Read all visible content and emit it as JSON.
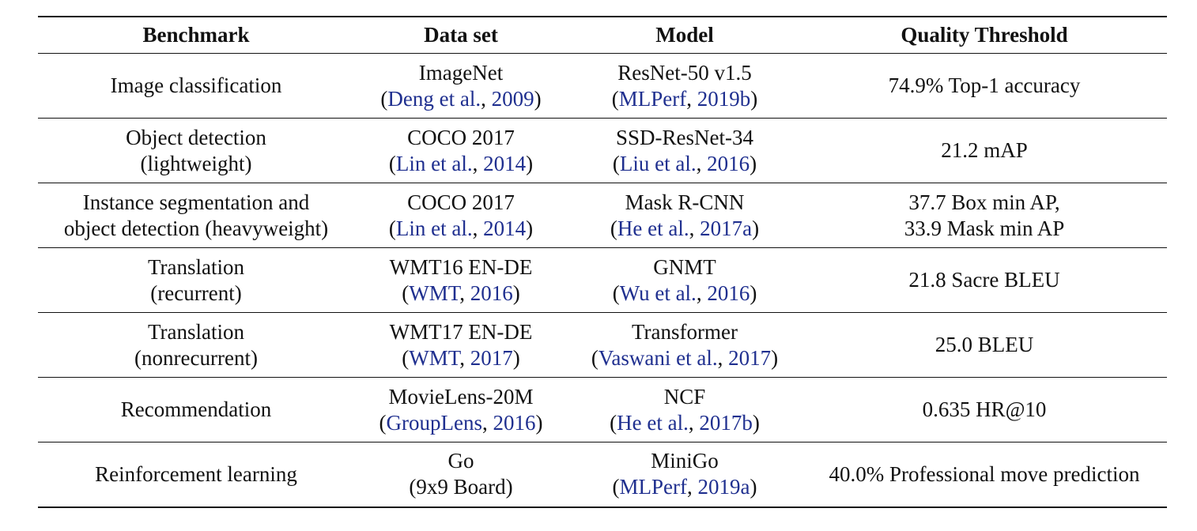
{
  "table": {
    "headers": [
      "Benchmark",
      "Data set",
      "Model",
      "Quality Threshold"
    ],
    "rows": [
      {
        "benchmark": [
          "Image classification"
        ],
        "dataset": {
          "name": "ImageNet",
          "cite_author": "Deng et al.",
          "cite_year": "2009"
        },
        "model": {
          "name": "ResNet-50 v1.5",
          "cite_author": "MLPerf",
          "cite_year": "2019b"
        },
        "threshold": [
          "74.9% Top-1 accuracy"
        ]
      },
      {
        "benchmark": [
          "Object detection",
          "(lightweight)"
        ],
        "dataset": {
          "name": "COCO 2017",
          "cite_author": "Lin et al.",
          "cite_year": "2014"
        },
        "model": {
          "name": "SSD-ResNet-34",
          "cite_author": "Liu et al.",
          "cite_year": "2016"
        },
        "threshold": [
          "21.2 mAP"
        ]
      },
      {
        "benchmark": [
          "Instance segmentation and",
          "object detection (heavyweight)"
        ],
        "dataset": {
          "name": "COCO 2017",
          "cite_author": "Lin et al.",
          "cite_year": "2014"
        },
        "model": {
          "name": "Mask R-CNN",
          "cite_author": "He et al.",
          "cite_year": "2017a"
        },
        "threshold": [
          "37.7 Box min AP,",
          "33.9 Mask min AP"
        ]
      },
      {
        "benchmark": [
          "Translation",
          "(recurrent)"
        ],
        "dataset": {
          "name": "WMT16 EN-DE",
          "cite_author": "WMT",
          "cite_year": "2016"
        },
        "model": {
          "name": "GNMT",
          "cite_author": "Wu et al.",
          "cite_year": "2016"
        },
        "threshold": [
          "21.8 Sacre BLEU"
        ]
      },
      {
        "benchmark": [
          "Translation",
          "(nonrecurrent)"
        ],
        "dataset": {
          "name": "WMT17 EN-DE",
          "cite_author": "WMT",
          "cite_year": "2017"
        },
        "model": {
          "name": "Transformer",
          "cite_author": "Vaswani et al.",
          "cite_year": "2017"
        },
        "threshold": [
          "25.0 BLEU"
        ]
      },
      {
        "benchmark": [
          "Recommendation"
        ],
        "dataset": {
          "name": "MovieLens-20M",
          "cite_author": "GroupLens",
          "cite_year": "2016"
        },
        "model": {
          "name": "NCF",
          "cite_author": "He et al.",
          "cite_year": "2017b"
        },
        "threshold": [
          "0.635 HR@10"
        ]
      },
      {
        "benchmark": [
          "Reinforcement learning"
        ],
        "dataset": {
          "name": "Go",
          "plain_second_line": "(9x9 Board)"
        },
        "model": {
          "name": "MiniGo",
          "cite_author": "MLPerf",
          "cite_year": "2019a"
        },
        "threshold": [
          "40.0% Professional move prediction"
        ]
      }
    ]
  },
  "colors": {
    "text": "#111111",
    "citation": "#1f2f8f",
    "rule": "#111111"
  }
}
